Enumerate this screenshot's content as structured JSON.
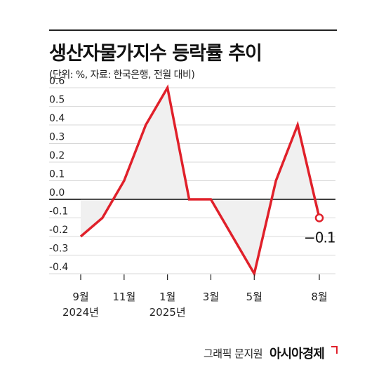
{
  "header": {
    "title": "생산자물가지수 등락률 추이",
    "subtitle": "(단위: %, 자료: 한국은행, 전월 대비)"
  },
  "chart_data": {
    "type": "area",
    "ylim": [
      -0.4,
      0.6
    ],
    "yticks": [
      "0.6",
      "0.5",
      "0.4",
      "0.3",
      "0.2",
      "0.1",
      "0.0",
      "-0.1",
      "-0.2",
      "-0.3",
      "-0.4"
    ],
    "ytick_values": [
      0.6,
      0.5,
      0.4,
      0.3,
      0.2,
      0.1,
      0.0,
      -0.1,
      -0.2,
      -0.3,
      -0.4
    ],
    "x": [
      "2024-09",
      "2024-10",
      "2024-11",
      "2024-12",
      "2025-01",
      "2025-02",
      "2025-03",
      "2025-04",
      "2025-05",
      "2025-06",
      "2025-07",
      "2025-08"
    ],
    "values": [
      -0.2,
      -0.1,
      0.1,
      0.4,
      0.6,
      0.0,
      0.0,
      -0.2,
      -0.4,
      0.1,
      0.4,
      -0.1
    ],
    "xtick_labels": [
      {
        "index": 0,
        "month": "9월",
        "year": "2024년"
      },
      {
        "index": 2,
        "month": "11월",
        "year": ""
      },
      {
        "index": 4,
        "month": "1월",
        "year": "2025년"
      },
      {
        "index": 6,
        "month": "3월",
        "year": ""
      },
      {
        "index": 8,
        "month": "5월",
        "year": ""
      },
      {
        "index": 11,
        "month": "8월",
        "year": ""
      }
    ],
    "last_value_label": "−0.1",
    "grid": true,
    "line_color": "#e0202a",
    "fill_color": "#f0f0f0",
    "grid_color": "#d8d8d8"
  },
  "footer": {
    "credit": "그래픽 문지원",
    "brand": "아시아경제"
  }
}
